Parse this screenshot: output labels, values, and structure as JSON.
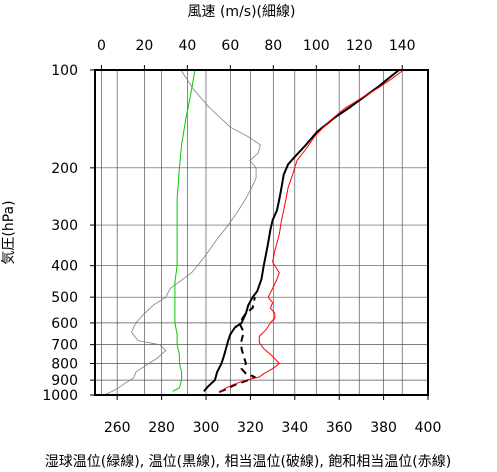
{
  "chart_data": {
    "type": "line",
    "top_axis_title": "風速 (m/s)(細線)",
    "bottom_axis_title": "湿球温位(緑線), 温位(黒線), 相当温位(破線), 飽和相当温位(赤線)",
    "y_axis_title": "気圧(hPa)",
    "y_scale": "log",
    "y_inverted": true,
    "ylim": [
      1000,
      100
    ],
    "y_ticks": [
      100,
      200,
      300,
      400,
      500,
      600,
      700,
      800,
      900,
      1000
    ],
    "y_tick_labels": [
      "100",
      "200",
      "300",
      "400",
      "500",
      "600",
      "700",
      "800",
      "900",
      "1000"
    ],
    "x_bottom_range": [
      250,
      400
    ],
    "x_bottom_ticks": [
      260,
      280,
      300,
      320,
      340,
      360,
      380,
      400
    ],
    "x_bottom_tick_labels": [
      "260",
      "280",
      "300",
      "320",
      "340",
      "360",
      "380",
      "400"
    ],
    "x_top_range": [
      -3,
      152
    ],
    "x_top_ticks": [
      0,
      20,
      40,
      60,
      80,
      100,
      120,
      140
    ],
    "x_top_tick_labels": [
      "0",
      "20",
      "40",
      "60",
      "80",
      "100",
      "120",
      "140"
    ],
    "grid": true,
    "series": [
      {
        "name": "風速",
        "axis": "top",
        "color": "#808080",
        "style": "thin",
        "points": [
          [
            2,
            995
          ],
          [
            5,
            975
          ],
          [
            8,
            950
          ],
          [
            11,
            920
          ],
          [
            15,
            885
          ],
          [
            16,
            850
          ],
          [
            22,
            800
          ],
          [
            26,
            770
          ],
          [
            30,
            730
          ],
          [
            27,
            700
          ],
          [
            17,
            680
          ],
          [
            14,
            640
          ],
          [
            16,
            600
          ],
          [
            19,
            570
          ],
          [
            24,
            530
          ],
          [
            30,
            500
          ],
          [
            32,
            470
          ],
          [
            38,
            440
          ],
          [
            42,
            420
          ],
          [
            46,
            390
          ],
          [
            50,
            360
          ],
          [
            54,
            330
          ],
          [
            59,
            300
          ],
          [
            63,
            275
          ],
          [
            67,
            250
          ],
          [
            70,
            230
          ],
          [
            72,
            215
          ],
          [
            72,
            200
          ],
          [
            69,
            190
          ],
          [
            73,
            180
          ],
          [
            74,
            170
          ],
          [
            68,
            160
          ],
          [
            60,
            150
          ],
          [
            50,
            130
          ],
          [
            43,
            115
          ],
          [
            37,
            100
          ]
        ]
      },
      {
        "name": "湿球温位",
        "axis": "bottom",
        "color": "#00cc00",
        "style": "solid",
        "points": [
          [
            285,
            975
          ],
          [
            288,
            950
          ],
          [
            289,
            900
          ],
          [
            289,
            850
          ],
          [
            288,
            800
          ],
          [
            288,
            750
          ],
          [
            287,
            700
          ],
          [
            287,
            650
          ],
          [
            286,
            600
          ],
          [
            286,
            550
          ],
          [
            286,
            500
          ],
          [
            286,
            450
          ],
          [
            287,
            400
          ],
          [
            287,
            350
          ],
          [
            287,
            300
          ],
          [
            287,
            250
          ],
          [
            288,
            200
          ],
          [
            289,
            170
          ],
          [
            291,
            140
          ],
          [
            293,
            120
          ],
          [
            295,
            100
          ]
        ]
      },
      {
        "name": "温位",
        "axis": "bottom",
        "color": "#000000",
        "style": "solid-bold",
        "points": [
          [
            299,
            975
          ],
          [
            301,
            940
          ],
          [
            304,
            900
          ],
          [
            305,
            850
          ],
          [
            307,
            800
          ],
          [
            308,
            760
          ],
          [
            309,
            720
          ],
          [
            310,
            680
          ],
          [
            311,
            650
          ],
          [
            313,
            620
          ],
          [
            316,
            600
          ],
          [
            317,
            580
          ],
          [
            318,
            560
          ],
          [
            319,
            530
          ],
          [
            321,
            500
          ],
          [
            323,
            480
          ],
          [
            325,
            440
          ],
          [
            326,
            400
          ],
          [
            327,
            370
          ],
          [
            328,
            340
          ],
          [
            329,
            310
          ],
          [
            330,
            290
          ],
          [
            332,
            270
          ],
          [
            333,
            250
          ],
          [
            334,
            230
          ],
          [
            335,
            210
          ],
          [
            337,
            195
          ],
          [
            340,
            185
          ],
          [
            345,
            170
          ],
          [
            350,
            155
          ],
          [
            358,
            140
          ],
          [
            365,
            130
          ],
          [
            372,
            120
          ],
          [
            378,
            112
          ],
          [
            383,
            105
          ],
          [
            387,
            100
          ]
        ]
      },
      {
        "name": "相当温位",
        "axis": "bottom",
        "color": "#000000",
        "style": "dashed",
        "points": [
          [
            306,
            980
          ],
          [
            309,
            960
          ],
          [
            313,
            930
          ],
          [
            319,
            900
          ],
          [
            322,
            880
          ],
          [
            318,
            860
          ],
          [
            316,
            830
          ],
          [
            318,
            800
          ],
          [
            317,
            760
          ],
          [
            316,
            720
          ],
          [
            316,
            680
          ],
          [
            317,
            640
          ],
          [
            315,
            600
          ],
          [
            318,
            560
          ],
          [
            321,
            540
          ],
          [
            322,
            500
          ]
        ]
      },
      {
        "name": "飽和相当温位",
        "axis": "bottom",
        "color": "#ff0000",
        "style": "solid",
        "points": [
          [
            306,
            985
          ],
          [
            308,
            960
          ],
          [
            312,
            930
          ],
          [
            318,
            900
          ],
          [
            324,
            880
          ],
          [
            326,
            860
          ],
          [
            330,
            830
          ],
          [
            333,
            800
          ],
          [
            330,
            760
          ],
          [
            326,
            720
          ],
          [
            324,
            690
          ],
          [
            324,
            660
          ],
          [
            327,
            630
          ],
          [
            329,
            600
          ],
          [
            331,
            580
          ],
          [
            331,
            560
          ],
          [
            329,
            540
          ],
          [
            330,
            520
          ],
          [
            328,
            500
          ],
          [
            330,
            470
          ],
          [
            332,
            440
          ],
          [
            333,
            420
          ],
          [
            330,
            390
          ],
          [
            331,
            360
          ],
          [
            333,
            320
          ],
          [
            334,
            290
          ],
          [
            335,
            270
          ],
          [
            336,
            250
          ],
          [
            337,
            230
          ],
          [
            339,
            210
          ],
          [
            341,
            190
          ],
          [
            345,
            175
          ],
          [
            349,
            160
          ],
          [
            355,
            145
          ],
          [
            362,
            132
          ],
          [
            370,
            122
          ],
          [
            378,
            113
          ],
          [
            384,
            106
          ],
          [
            389,
            100
          ]
        ]
      }
    ]
  }
}
